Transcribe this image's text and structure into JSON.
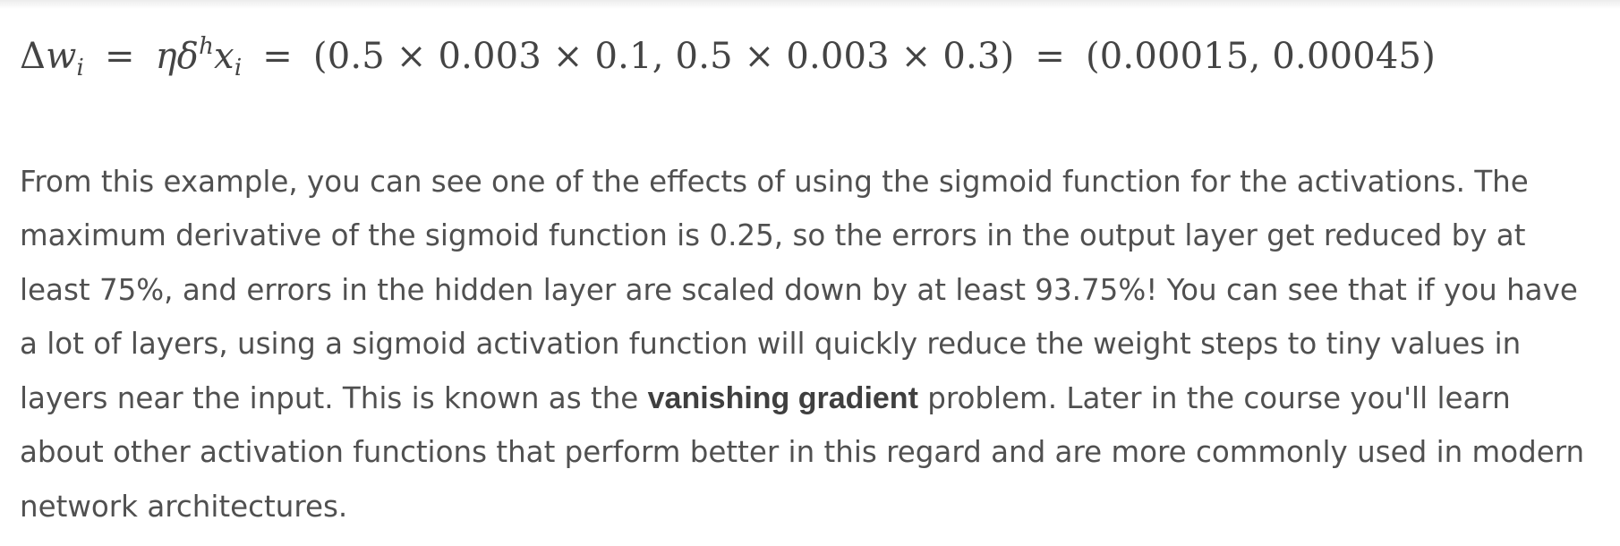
{
  "equation": {
    "delta": "Δ",
    "w": "w",
    "i1": "i",
    "eq1": "=",
    "eta": "η",
    "delta_small": "δ",
    "h": "h",
    "x": "x",
    "i2": "i",
    "eq2": "=",
    "expr": "(0.5 × 0.003 × 0.1, 0.5 × 0.003 × 0.3)",
    "eq3": "=",
    "result": "(0.00015, 0.00045)"
  },
  "paragraph": {
    "part1": "From this example, you can see one of the effects of using the sigmoid function for the activations. The maximum derivative of the sigmoid function is 0.25, so the errors in the output layer get reduced by at least 75%, and errors in the hidden layer are scaled down by at least 93.75%! You can see that if you have a lot of layers, using a sigmoid activation function will quickly reduce the weight steps to tiny values in layers near the input. This is known as the ",
    "bold": "vanishing gradient",
    "part2": " problem. Later in the course you'll learn about other activation functions that perform better in this regard and are more commonly used in modern network architectures."
  }
}
